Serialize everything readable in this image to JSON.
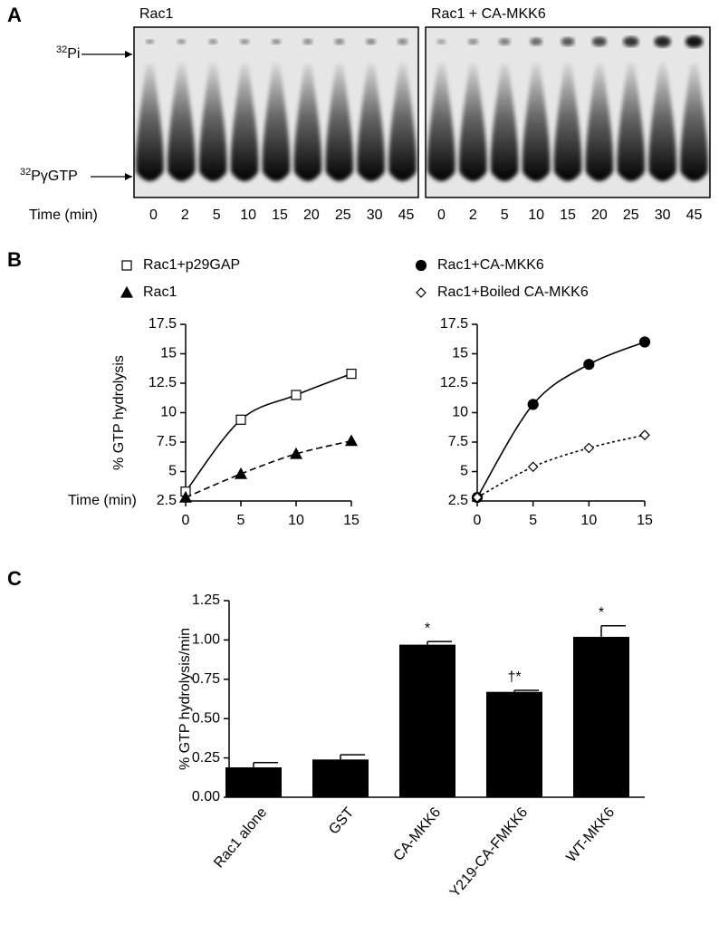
{
  "panel_labels": [
    "A",
    "B",
    "C"
  ],
  "gel": {
    "pi_marker": {
      "sup": "32",
      "text": "Pi"
    },
    "gtp_marker": {
      "sup": "32",
      "text": "PγGTP"
    },
    "time_label": "Time (min)",
    "blots": [
      {
        "title": "Rac1",
        "lanes": [
          0,
          2,
          5,
          10,
          15,
          20,
          25,
          30,
          45
        ]
      },
      {
        "title": "Rac1 + CA-MKK6",
        "lanes": [
          0,
          2,
          5,
          10,
          15,
          20,
          25,
          30,
          45
        ]
      }
    ]
  },
  "chart_data": [
    {
      "type": "line",
      "ylabel": "% GTP hydrolysis",
      "xlabel": "Time (min)",
      "x": [
        0,
        5,
        10,
        15
      ],
      "xlim": [
        0,
        15
      ],
      "xticks": [
        0,
        5,
        10,
        15
      ],
      "ylim": [
        2.5,
        17.5
      ],
      "yticks": [
        2.5,
        5,
        7.5,
        10,
        12.5,
        15,
        17.5
      ],
      "series": [
        {
          "name": "Rac1+p29GAP",
          "color": "#000000",
          "marker": "square-open",
          "line_style": "solid",
          "values": [
            3.3,
            9.4,
            11.5,
            13.3
          ]
        },
        {
          "name": "Rac1",
          "color": "#000000",
          "marker": "triangle-filled",
          "line_style": "dashed",
          "values": [
            2.8,
            4.8,
            6.5,
            7.6
          ]
        }
      ]
    },
    {
      "type": "line",
      "x": [
        0,
        5,
        10,
        15
      ],
      "xlim": [
        0,
        15
      ],
      "xticks": [
        0,
        5,
        10,
        15
      ],
      "ylim": [
        2.5,
        17.5
      ],
      "yticks": [
        2.5,
        5,
        7.5,
        10,
        12.5,
        15,
        17.5
      ],
      "series": [
        {
          "name": "Rac1+CA-MKK6",
          "color": "#000000",
          "marker": "circle-filled",
          "line_style": "solid",
          "values": [
            2.8,
            10.7,
            14.1,
            16.0
          ]
        },
        {
          "name": "Rac1+Boiled CA-MKK6",
          "color": "#000000",
          "marker": "diamond-open",
          "line_style": "dotted",
          "values": [
            2.8,
            5.4,
            7.0,
            8.1
          ]
        }
      ]
    },
    {
      "type": "bar",
      "ylabel": "% GTP hydrolysis/min",
      "categories": [
        "Rac1 alone",
        "GST",
        "CA-MKK6",
        "Y219-CA-FMKK6",
        "WT-MKK6"
      ],
      "values": [
        0.19,
        0.24,
        0.97,
        0.67,
        1.02
      ],
      "errors": [
        0.03,
        0.03,
        0.02,
        0.01,
        0.07
      ],
      "annotations": [
        null,
        null,
        "*",
        "†*",
        "*"
      ],
      "color": "#000000",
      "ylim": [
        0,
        1.25
      ],
      "yticks": [
        {
          "value": 0,
          "label": "0.00"
        },
        {
          "value": 0.25,
          "label": "0.25"
        },
        {
          "value": 0.5,
          "label": "0.50"
        },
        {
          "value": 0.75,
          "label": "0.75"
        },
        {
          "value": 1,
          "label": "1.00"
        },
        {
          "value": 1.25,
          "label": "1.25"
        }
      ]
    }
  ]
}
